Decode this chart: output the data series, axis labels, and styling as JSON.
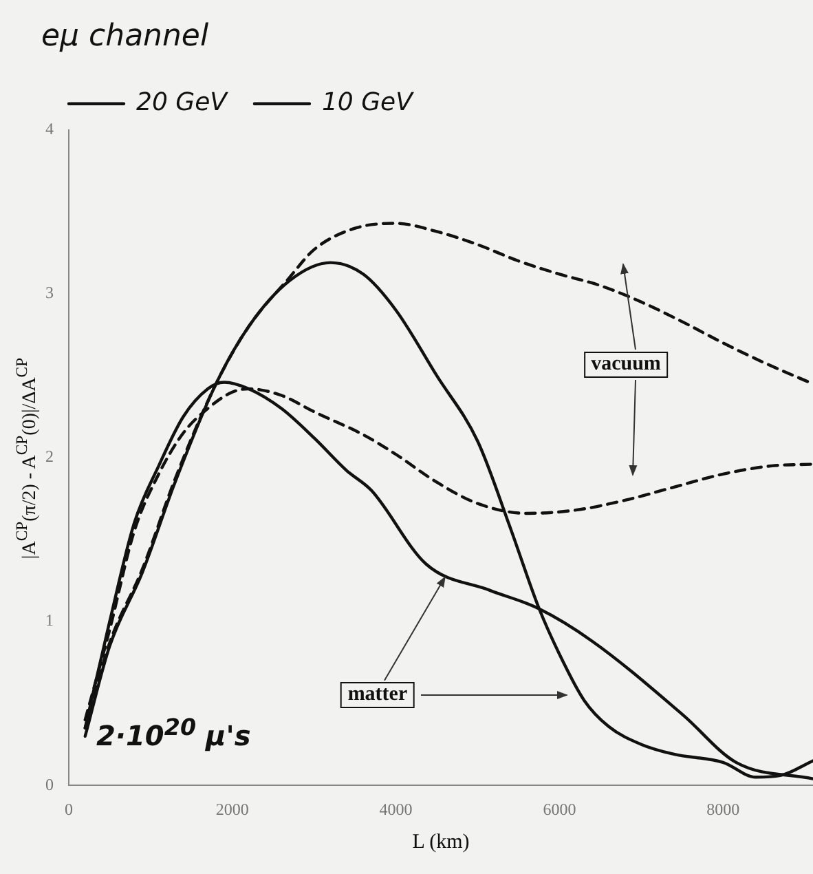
{
  "chart_data": {
    "type": "line",
    "title": "eμ channel",
    "xlabel": "L (km)",
    "ylabel": "|A$^{CP}$(π/2) - A$^{CP}$(0)|/ΔA$^{CP}$",
    "xlim": [
      0,
      9100
    ],
    "xticks": [
      0,
      2000,
      4000,
      6000,
      8000
    ],
    "ylim": [
      0,
      4
    ],
    "yticks": [
      0,
      1,
      2,
      3,
      4
    ],
    "grid": false,
    "legend": "top",
    "marker": "none",
    "annotations": [
      "vacuum",
      {
        "text": "matter",
        "x": 4600,
        "y": 1.27
      },
      "2·10$^{20}$ μ's"
    ],
    "series": [
      {
        "name": "20 GeV",
        "color": "#111111",
        "line_style": "solid",
        "x": [
          200,
          500,
          900,
          1300,
          1800,
          2200,
          2700,
          3200,
          3600,
          4000,
          4500,
          5000,
          5400,
          5750,
          6000,
          6300,
          6600,
          7000,
          7400,
          8000,
          8400,
          8700,
          9100
        ],
        "values": [
          0.3,
          0.85,
          1.3,
          1.85,
          2.45,
          2.8,
          3.08,
          3.19,
          3.12,
          2.9,
          2.5,
          2.1,
          1.57,
          1.08,
          0.8,
          0.52,
          0.36,
          0.25,
          0.19,
          0.14,
          0.05,
          0.06,
          0.15
        ]
      },
      {
        "color": "#111111",
        "line_style": "dashed",
        "x": [
          200,
          500,
          900,
          1300,
          1800,
          2200,
          2700,
          3000,
          3500,
          4000,
          4500,
          5000,
          5500,
          6000,
          6500,
          7000,
          7500,
          8000,
          8500,
          9100
        ],
        "values": [
          0.35,
          0.87,
          1.32,
          1.87,
          2.45,
          2.8,
          3.1,
          3.27,
          3.4,
          3.43,
          3.38,
          3.3,
          3.2,
          3.12,
          3.05,
          2.95,
          2.83,
          2.7,
          2.58,
          2.45
        ]
      },
      {
        "name": "10 GeV",
        "color": "#111111",
        "line_style": "solid",
        "x": [
          200,
          500,
          800,
          1100,
          1400,
          1700,
          1900,
          2200,
          2600,
          3000,
          3400,
          3700,
          4370,
          5150,
          5740,
          6400,
          7510,
          8160,
          9100
        ],
        "values": [
          0.35,
          1.0,
          1.6,
          1.95,
          2.25,
          2.42,
          2.46,
          2.42,
          2.3,
          2.12,
          1.92,
          1.8,
          1.35,
          1.19,
          1.08,
          0.88,
          0.43,
          0.14,
          0.04
        ]
      },
      {
        "color": "#111111",
        "line_style": "dashed",
        "x": [
          200,
          500,
          800,
          1100,
          1400,
          1700,
          2000,
          2200,
          2600,
          3000,
          3600,
          4000,
          4500,
          5000,
          5600,
          6200,
          6800,
          7400,
          8000,
          8600,
          9100
        ],
        "values": [
          0.4,
          0.95,
          1.55,
          1.9,
          2.15,
          2.3,
          2.4,
          2.42,
          2.38,
          2.28,
          2.14,
          2.02,
          1.85,
          1.72,
          1.66,
          1.68,
          1.74,
          1.82,
          1.9,
          1.95,
          1.96
        ]
      }
    ]
  }
}
